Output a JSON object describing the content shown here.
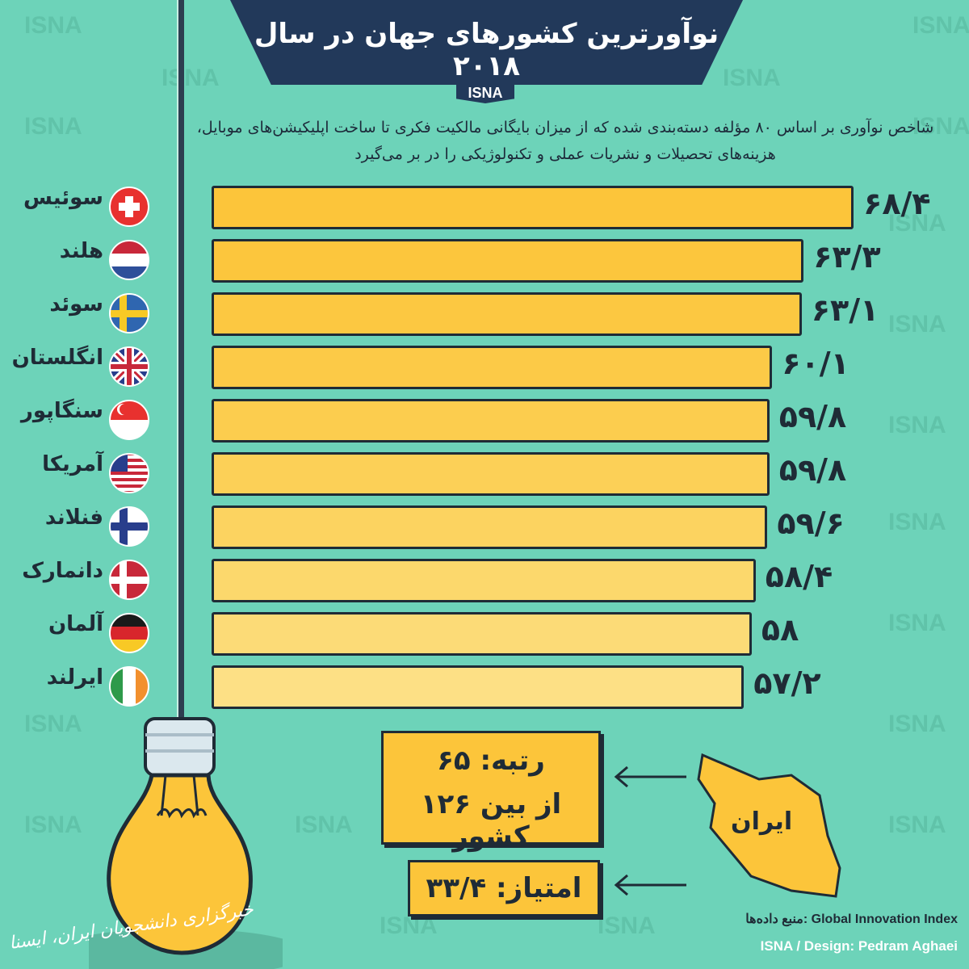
{
  "header": {
    "title": "نوآورترین کشورهای جهان در سال ۲۰۱۸",
    "tag": "ISNA",
    "subtitle": "شاخص نوآوری بر اساس ۸۰ مؤلفه دسته‌بندی شده که از میزان بایگانی مالکیت فکری تا ساخت اپلیکیشن‌های موبایل، هزینه‌های تحصیلات و نشریات عملی و تکنولوژیکی را در بر می‌گیرد"
  },
  "watermark": "ISNA",
  "chart_data": {
    "type": "bar",
    "orientation": "horizontal",
    "title": "نوآورترین کشورهای جهان در سال ۲۰۱۸",
    "categories": [
      "سوئیس",
      "هلند",
      "سوئد",
      "انگلستان",
      "سنگاپور",
      "آمریکا",
      "فنلاند",
      "دانمارک",
      "آلمان",
      "ایرلند"
    ],
    "values": [
      68.4,
      63.3,
      63.1,
      60.1,
      59.8,
      59.8,
      59.6,
      58.4,
      58,
      57.2
    ],
    "labels": [
      "۶۸/۴",
      "۶۳/۳",
      "۶۳/۱",
      "۶۰/۱",
      "۵۹/۸",
      "۵۹/۸",
      "۵۹/۶",
      "۵۸/۴",
      "۵۸",
      "۵۷/۲"
    ],
    "flags": [
      "switzerland",
      "netherlands",
      "sweden",
      "uk",
      "singapore",
      "usa",
      "finland",
      "denmark",
      "germany",
      "ireland"
    ],
    "bar_colors": [
      "#fcc53a",
      "#fcc63d",
      "#fcc841",
      "#fcca47",
      "#fccd4e",
      "#fcd057",
      "#fcd360",
      "#fcd86c",
      "#fcdb77",
      "#fde085"
    ],
    "grid": false
  },
  "iran": {
    "label": "ایران",
    "rank_line1": "رتبه: ۶۵",
    "rank_line2": "از بین ۱۲۶ کشور",
    "score": "امتیاز: ۳۳/۴"
  },
  "footer": {
    "source": "منبع داده‌ها: Global Innovation Index",
    "credit": "ISNA / Design: Pedram Aghaei",
    "agency": "خبرگزاری دانشجویان ایران، ایسنا"
  },
  "colors": {
    "background": "#6dd3b9",
    "banner": "#22395a",
    "bar": "#fcc53a",
    "text": "#1f2b36"
  }
}
